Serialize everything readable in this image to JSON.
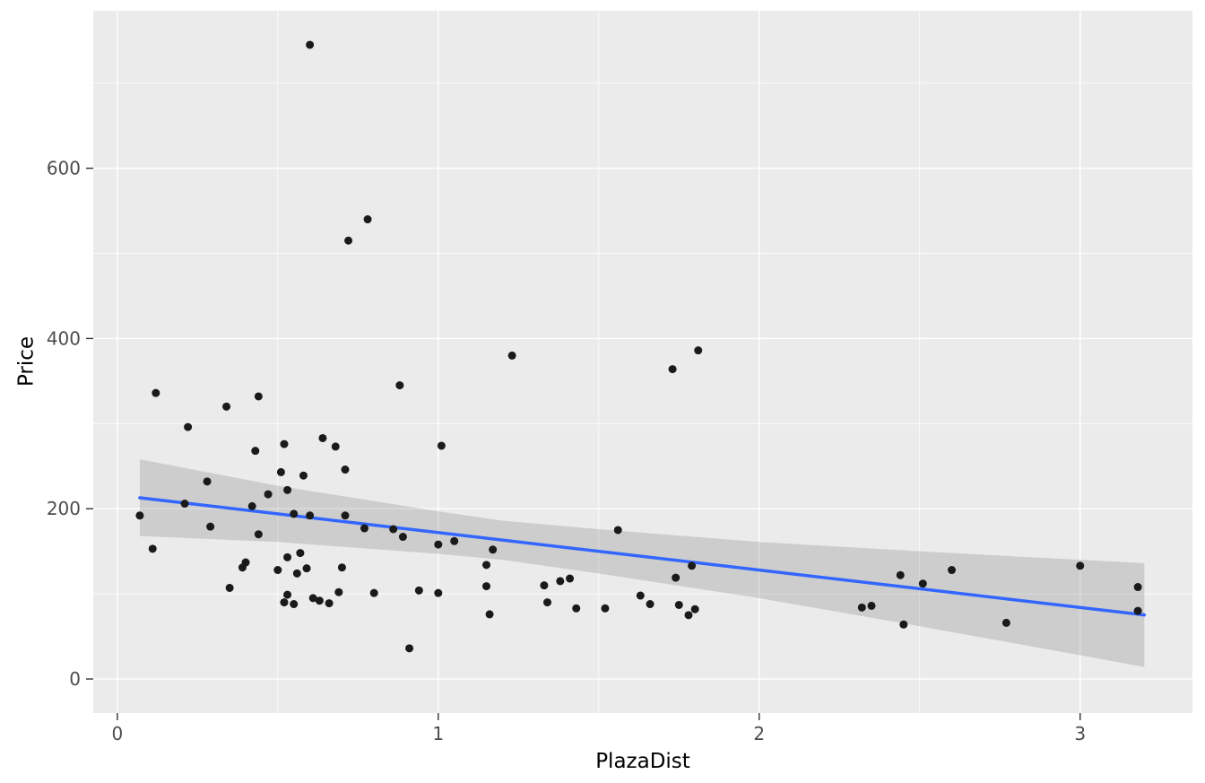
{
  "figure": {
    "background": "#ffffff",
    "panel_background": "#ebebeb",
    "grid_color": "#ffffff",
    "point_color": "#1a1a1a",
    "line_color": "#3366ff",
    "ribbon_color": "#666666",
    "ribbon_opacity": 0.22,
    "tick_label_color": "#4d4d4d",
    "tick_mark_color": "#333333"
  },
  "chart_data": {
    "type": "scatter",
    "title": "",
    "xlabel": "PlazaDist",
    "ylabel": "Price",
    "xlim": [
      -0.075,
      3.35
    ],
    "ylim": [
      -40,
      785
    ],
    "xticks": [
      0,
      1,
      2,
      3
    ],
    "yticks": [
      0,
      200,
      400,
      600
    ],
    "xminor": [
      0.5,
      1.5,
      2.5
    ],
    "yminor": [
      100,
      300,
      500,
      700
    ],
    "grid": "on",
    "legend": "none",
    "points": [
      [
        0.6,
        745
      ],
      [
        0.78,
        540
      ],
      [
        0.72,
        515
      ],
      [
        1.23,
        380
      ],
      [
        1.81,
        386
      ],
      [
        1.73,
        364
      ],
      [
        0.88,
        345
      ],
      [
        0.12,
        336
      ],
      [
        0.44,
        332
      ],
      [
        0.34,
        320
      ],
      [
        0.22,
        296
      ],
      [
        0.64,
        283
      ],
      [
        0.52,
        276
      ],
      [
        0.68,
        273
      ],
      [
        1.01,
        274
      ],
      [
        0.43,
        268
      ],
      [
        0.71,
        246
      ],
      [
        0.51,
        243
      ],
      [
        0.58,
        239
      ],
      [
        0.28,
        232
      ],
      [
        0.53,
        222
      ],
      [
        0.47,
        217
      ],
      [
        0.21,
        206
      ],
      [
        0.42,
        203
      ],
      [
        0.55,
        194
      ],
      [
        0.6,
        192
      ],
      [
        0.71,
        192
      ],
      [
        0.07,
        192
      ],
      [
        0.29,
        179
      ],
      [
        0.77,
        177
      ],
      [
        0.86,
        176
      ],
      [
        1.56,
        175
      ],
      [
        0.44,
        170
      ],
      [
        0.89,
        167
      ],
      [
        1.05,
        162
      ],
      [
        1.0,
        158
      ],
      [
        0.11,
        153
      ],
      [
        1.17,
        152
      ],
      [
        0.57,
        148
      ],
      [
        0.53,
        143
      ],
      [
        0.4,
        137
      ],
      [
        1.15,
        134
      ],
      [
        0.39,
        131
      ],
      [
        1.79,
        133
      ],
      [
        2.6,
        128
      ],
      [
        3.0,
        133
      ],
      [
        0.7,
        131
      ],
      [
        0.59,
        130
      ],
      [
        0.5,
        128
      ],
      [
        0.56,
        124
      ],
      [
        2.44,
        122
      ],
      [
        1.74,
        119
      ],
      [
        1.38,
        115
      ],
      [
        1.41,
        118
      ],
      [
        2.51,
        112
      ],
      [
        3.18,
        108
      ],
      [
        1.33,
        110
      ],
      [
        0.94,
        104
      ],
      [
        0.69,
        102
      ],
      [
        0.8,
        101
      ],
      [
        0.35,
        107
      ],
      [
        1.0,
        101
      ],
      [
        0.61,
        95
      ],
      [
        0.53,
        99
      ],
      [
        1.34,
        90
      ],
      [
        1.63,
        98
      ],
      [
        1.66,
        88
      ],
      [
        0.55,
        88
      ],
      [
        0.52,
        90
      ],
      [
        1.43,
        83
      ],
      [
        1.52,
        83
      ],
      [
        1.16,
        76
      ],
      [
        1.8,
        82
      ],
      [
        1.75,
        87
      ],
      [
        1.78,
        75
      ],
      [
        2.32,
        84
      ],
      [
        2.35,
        86
      ],
      [
        2.45,
        64
      ],
      [
        2.77,
        66
      ],
      [
        3.18,
        80
      ],
      [
        0.91,
        36
      ],
      [
        0.63,
        92
      ],
      [
        0.66,
        89
      ],
      [
        1.15,
        109
      ]
    ],
    "regression": {
      "type": "linear",
      "slope": -44,
      "intercept": 216,
      "x_start": 0.07,
      "x_end": 3.2
    },
    "confidence_band": {
      "x": [
        0.07,
        0.5,
        1.0,
        1.2,
        1.5,
        2.0,
        2.5,
        3.0,
        3.2
      ],
      "lower": [
        168,
        161,
        147,
        140,
        124,
        95,
        62,
        28,
        14
      ],
      "upper": [
        258,
        227,
        197,
        186,
        176,
        161,
        150,
        140,
        136
      ]
    }
  }
}
